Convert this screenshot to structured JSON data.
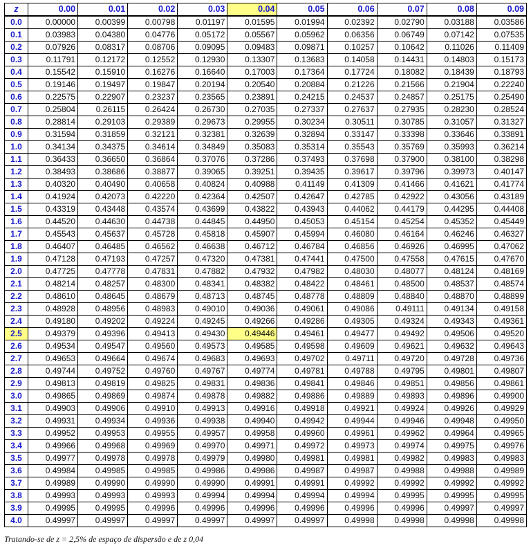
{
  "table": {
    "z_header": "z",
    "highlight_col": 4,
    "highlight_row": 25,
    "columns": [
      "0.00",
      "0.01",
      "0.02",
      "0.03",
      "0.04",
      "0.05",
      "0.06",
      "0.07",
      "0.08",
      "0.09"
    ],
    "rows": [
      {
        "z": "0.0",
        "v": [
          "0.00000",
          "0.00399",
          "0.00798",
          "0.01197",
          "0.01595",
          "0.01994",
          "0.02392",
          "0.02790",
          "0.03188",
          "0.03586"
        ]
      },
      {
        "z": "0.1",
        "v": [
          "0.03983",
          "0.04380",
          "0.04776",
          "0.05172",
          "0.05567",
          "0.05962",
          "0.06356",
          "0.06749",
          "0.07142",
          "0.07535"
        ]
      },
      {
        "z": "0.2",
        "v": [
          "0.07926",
          "0.08317",
          "0.08706",
          "0.09095",
          "0.09483",
          "0.09871",
          "0.10257",
          "0.10642",
          "0.11026",
          "0.11409"
        ]
      },
      {
        "z": "0.3",
        "v": [
          "0.11791",
          "0.12172",
          "0.12552",
          "0.12930",
          "0.13307",
          "0.13683",
          "0.14058",
          "0.14431",
          "0.14803",
          "0.15173"
        ]
      },
      {
        "z": "0.4",
        "v": [
          "0.15542",
          "0.15910",
          "0.16276",
          "0.16640",
          "0.17003",
          "0.17364",
          "0.17724",
          "0.18082",
          "0.18439",
          "0.18793"
        ]
      },
      {
        "z": "0.5",
        "v": [
          "0.19146",
          "0.19497",
          "0.19847",
          "0.20194",
          "0.20540",
          "0.20884",
          "0.21226",
          "0.21566",
          "0.21904",
          "0.22240"
        ]
      },
      {
        "z": "0.6",
        "v": [
          "0.22575",
          "0.22907",
          "0.23237",
          "0.23565",
          "0.23891",
          "0.24215",
          "0.24537",
          "0.24857",
          "0.25175",
          "0.25490"
        ]
      },
      {
        "z": "0.7",
        "v": [
          "0.25804",
          "0.26115",
          "0.26424",
          "0.26730",
          "0.27035",
          "0.27337",
          "0.27637",
          "0.27935",
          "0.28230",
          "0.28524"
        ]
      },
      {
        "z": "0.8",
        "v": [
          "0.28814",
          "0.29103",
          "0.29389",
          "0.29673",
          "0.29955",
          "0.30234",
          "0.30511",
          "0.30785",
          "0.31057",
          "0.31327"
        ]
      },
      {
        "z": "0.9",
        "v": [
          "0.31594",
          "0.31859",
          "0.32121",
          "0.32381",
          "0.32639",
          "0.32894",
          "0.33147",
          "0.33398",
          "0.33646",
          "0.33891"
        ]
      },
      {
        "z": "1.0",
        "v": [
          "0.34134",
          "0.34375",
          "0.34614",
          "0.34849",
          "0.35083",
          "0.35314",
          "0.35543",
          "0.35769",
          "0.35993",
          "0.36214"
        ]
      },
      {
        "z": "1.1",
        "v": [
          "0.36433",
          "0.36650",
          "0.36864",
          "0.37076",
          "0.37286",
          "0.37493",
          "0.37698",
          "0.37900",
          "0.38100",
          "0.38298"
        ]
      },
      {
        "z": "1.2",
        "v": [
          "0.38493",
          "0.38686",
          "0.38877",
          "0.39065",
          "0.39251",
          "0.39435",
          "0.39617",
          "0.39796",
          "0.39973",
          "0.40147"
        ]
      },
      {
        "z": "1.3",
        "v": [
          "0.40320",
          "0.40490",
          "0.40658",
          "0.40824",
          "0.40988",
          "0.41149",
          "0.41309",
          "0.41466",
          "0.41621",
          "0.41774"
        ]
      },
      {
        "z": "1.4",
        "v": [
          "0.41924",
          "0.42073",
          "0.42220",
          "0.42364",
          "0.42507",
          "0.42647",
          "0.42785",
          "0.42922",
          "0.43056",
          "0.43189"
        ]
      },
      {
        "z": "1.5",
        "v": [
          "0.43319",
          "0.43448",
          "0.43574",
          "0.43699",
          "0.43822",
          "0.43943",
          "0.44062",
          "0.44179",
          "0.44295",
          "0.44408"
        ]
      },
      {
        "z": "1.6",
        "v": [
          "0.44520",
          "0.44630",
          "0.44738",
          "0.44845",
          "0.44950",
          "0.45053",
          "0.45154",
          "0.45254",
          "0.45352",
          "0.45449"
        ]
      },
      {
        "z": "1.7",
        "v": [
          "0.45543",
          "0.45637",
          "0.45728",
          "0.45818",
          "0.45907",
          "0.45994",
          "0.46080",
          "0.46164",
          "0.46246",
          "0.46327"
        ]
      },
      {
        "z": "1.8",
        "v": [
          "0.46407",
          "0.46485",
          "0.46562",
          "0.46638",
          "0.46712",
          "0.46784",
          "0.46856",
          "0.46926",
          "0.46995",
          "0.47062"
        ]
      },
      {
        "z": "1.9",
        "v": [
          "0.47128",
          "0.47193",
          "0.47257",
          "0.47320",
          "0.47381",
          "0.47441",
          "0.47500",
          "0.47558",
          "0.47615",
          "0.47670"
        ]
      },
      {
        "z": "2.0",
        "v": [
          "0.47725",
          "0.47778",
          "0.47831",
          "0.47882",
          "0.47932",
          "0.47982",
          "0.48030",
          "0.48077",
          "0.48124",
          "0.48169"
        ]
      },
      {
        "z": "2.1",
        "v": [
          "0.48214",
          "0.48257",
          "0.48300",
          "0.48341",
          "0.48382",
          "0.48422",
          "0.48461",
          "0.48500",
          "0.48537",
          "0.48574"
        ]
      },
      {
        "z": "2.2",
        "v": [
          "0.48610",
          "0.48645",
          "0.48679",
          "0.48713",
          "0.48745",
          "0.48778",
          "0.48809",
          "0.48840",
          "0.48870",
          "0.48899"
        ]
      },
      {
        "z": "2.3",
        "v": [
          "0.48928",
          "0.48956",
          "0.48983",
          "0.49010",
          "0.49036",
          "0.49061",
          "0.49086",
          "0.49111",
          "0.49134",
          "0.49158"
        ]
      },
      {
        "z": "2.4",
        "v": [
          "0.49180",
          "0.49202",
          "0.49224",
          "0.49245",
          "0.49266",
          "0.49286",
          "0.49305",
          "0.49324",
          "0.49343",
          "0.49361"
        ]
      },
      {
        "z": "2.5",
        "v": [
          "0.49379",
          "0.49396",
          "0.49413",
          "0.49430",
          "0.49446",
          "0.49461",
          "0.49477",
          "0.49492",
          "0.49506",
          "0.49520"
        ]
      },
      {
        "z": "2.6",
        "v": [
          "0.49534",
          "0.49547",
          "0.49560",
          "0.49573",
          "0.49585",
          "0.49598",
          "0.49609",
          "0.49621",
          "0.49632",
          "0.49643"
        ]
      },
      {
        "z": "2.7",
        "v": [
          "0.49653",
          "0.49664",
          "0.49674",
          "0.49683",
          "0.49693",
          "0.49702",
          "0.49711",
          "0.49720",
          "0.49728",
          "0.49736"
        ]
      },
      {
        "z": "2.8",
        "v": [
          "0.49744",
          "0.49752",
          "0.49760",
          "0.49767",
          "0.49774",
          "0.49781",
          "0.49788",
          "0.49795",
          "0.49801",
          "0.49807"
        ]
      },
      {
        "z": "2.9",
        "v": [
          "0.49813",
          "0.49819",
          "0.49825",
          "0.49831",
          "0.49836",
          "0.49841",
          "0.49846",
          "0.49851",
          "0.49856",
          "0.49861"
        ]
      },
      {
        "z": "3.0",
        "v": [
          "0.49865",
          "0.49869",
          "0.49874",
          "0.49878",
          "0.49882",
          "0.49886",
          "0.49889",
          "0.49893",
          "0.49896",
          "0.49900"
        ]
      },
      {
        "z": "3.1",
        "v": [
          "0.49903",
          "0.49906",
          "0.49910",
          "0.49913",
          "0.49916",
          "0.49918",
          "0.49921",
          "0.49924",
          "0.49926",
          "0.49929"
        ]
      },
      {
        "z": "3.2",
        "v": [
          "0.49931",
          "0.49934",
          "0.49936",
          "0.49938",
          "0.49940",
          "0.49942",
          "0.49944",
          "0.49946",
          "0.49948",
          "0.49950"
        ]
      },
      {
        "z": "3.3",
        "v": [
          "0.49952",
          "0.49953",
          "0.49955",
          "0.49957",
          "0.49958",
          "0.49960",
          "0.49961",
          "0.49962",
          "0.49964",
          "0.49965"
        ]
      },
      {
        "z": "3.4",
        "v": [
          "0.49966",
          "0.49968",
          "0.49969",
          "0.49970",
          "0.49971",
          "0.49972",
          "0.49973",
          "0.49974",
          "0.49975",
          "0.49976"
        ]
      },
      {
        "z": "3.5",
        "v": [
          "0.49977",
          "0.49978",
          "0.49978",
          "0.49979",
          "0.49980",
          "0.49981",
          "0.49981",
          "0.49982",
          "0.49983",
          "0.49983"
        ]
      },
      {
        "z": "3.6",
        "v": [
          "0.49984",
          "0.49985",
          "0.49985",
          "0.49986",
          "0.49986",
          "0.49987",
          "0.49987",
          "0.49988",
          "0.49988",
          "0.49989"
        ]
      },
      {
        "z": "3.7",
        "v": [
          "0.49989",
          "0.49990",
          "0.49990",
          "0.49990",
          "0.49991",
          "0.49991",
          "0.49992",
          "0.49992",
          "0.49992",
          "0.49992"
        ]
      },
      {
        "z": "3.8",
        "v": [
          "0.49993",
          "0.49993",
          "0.49993",
          "0.49994",
          "0.49994",
          "0.49994",
          "0.49994",
          "0.49995",
          "0.49995",
          "0.49995"
        ]
      },
      {
        "z": "3.9",
        "v": [
          "0.49995",
          "0.49995",
          "0.49996",
          "0.49996",
          "0.49996",
          "0.49996",
          "0.49996",
          "0.49996",
          "0.49997",
          "0.49997"
        ]
      },
      {
        "z": "4.0",
        "v": [
          "0.49997",
          "0.49997",
          "0.49997",
          "0.49997",
          "0.49997",
          "0.49997",
          "0.49998",
          "0.49998",
          "0.49998",
          "0.49998"
        ]
      }
    ],
    "highlight_color": "#ffff88",
    "header_color": "#1a1acc"
  },
  "caption": "Tratando-se de z = 2,5% de espaço de dispersão e de z 0,04"
}
